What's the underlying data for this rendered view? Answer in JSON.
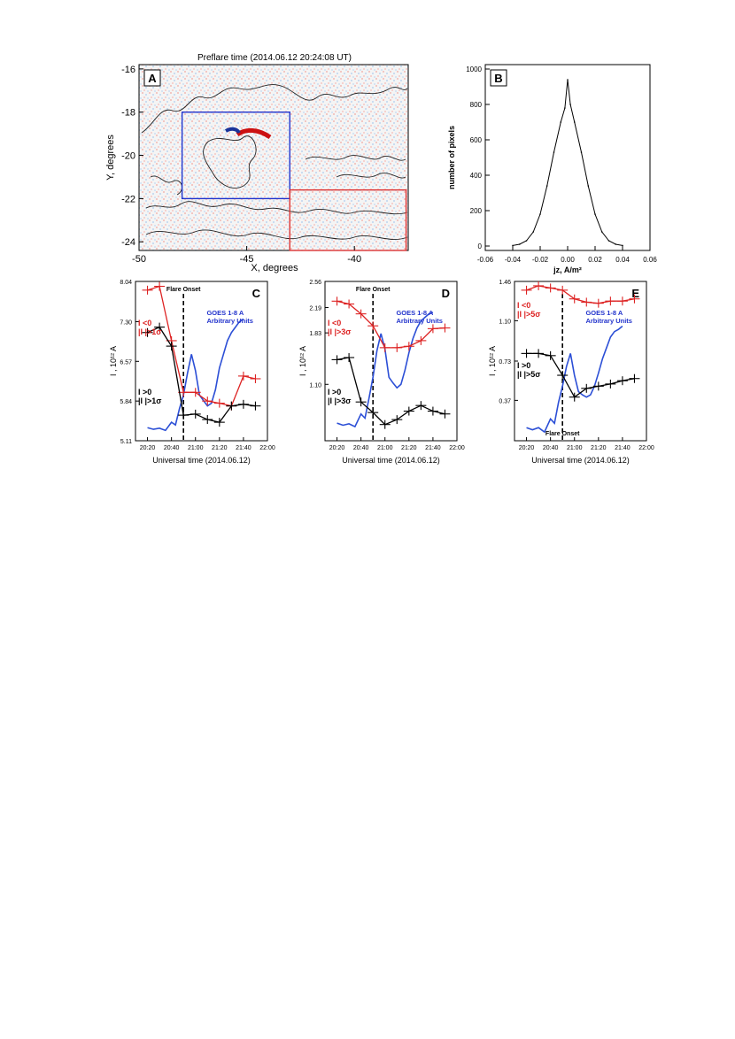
{
  "figure": {
    "panelA": {
      "letter": "A",
      "title": "Preflare time (2014.06.12 20:24:08 UT)",
      "xlabel": "X, degrees",
      "ylabel": "Y, degrees",
      "xlim": [
        -50,
        -37.5
      ],
      "ylim": [
        -24.4,
        -15.8
      ],
      "xticks": [
        -50,
        -45,
        -40
      ],
      "yticks": [
        -24,
        -22,
        -20,
        -18,
        -16
      ],
      "boxes": [
        {
          "color": "#2233cc",
          "x": [
            -48,
            -43
          ],
          "y": [
            -22,
            -18
          ]
        },
        {
          "color": "#dd3333",
          "x": [
            -43,
            -37.6
          ],
          "y": [
            -24.4,
            -21.6
          ]
        }
      ]
    }
  },
  "chart_data": [
    {
      "type": "bar",
      "panel": "B",
      "title": "",
      "xlabel": "jz, A/m²",
      "ylabel": "number of pixels",
      "xlim": [
        -0.06,
        0.06
      ],
      "ylim": [
        0,
        1000
      ],
      "xticks": [
        "-0.06",
        "-0.04",
        "-0.02",
        "0.00",
        "0.02",
        "0.04",
        "0.06"
      ],
      "yticks": [
        "0",
        "200",
        "400",
        "600",
        "800",
        "1000"
      ],
      "x": [
        -0.04,
        -0.035,
        -0.03,
        -0.025,
        -0.02,
        -0.015,
        -0.01,
        -0.005,
        -0.002,
        0,
        0.002,
        0.005,
        0.01,
        0.015,
        0.02,
        0.025,
        0.03,
        0.035,
        0.04
      ],
      "values": [
        3,
        10,
        30,
        80,
        180,
        340,
        530,
        700,
        780,
        940,
        800,
        700,
        530,
        340,
        180,
        80,
        30,
        10,
        3
      ]
    },
    {
      "type": "line",
      "panel": "C",
      "xlabel": "Universal time (2014.06.12)",
      "ylabel": "I , 10¹² A",
      "ylim": [
        5.11,
        8.04
      ],
      "yticks": [
        "5.11",
        "5.84",
        "6.57",
        "7.30",
        "8.04"
      ],
      "xticks": [
        "20:20",
        "20:40",
        "21:00",
        "21:20",
        "21:40",
        "22:00"
      ],
      "x_minutes": [
        24,
        36,
        48,
        60,
        72,
        84,
        96,
        108,
        120,
        132
      ],
      "onset_minute": 60,
      "onset_label": "Flare Onset",
      "goes_label": [
        "GOES 1-8 A",
        "Arbitrary Units"
      ],
      "series": [
        {
          "color": "#dd2222",
          "label": [
            "I <0",
            "|I |>1σ"
          ],
          "values": [
            7.88,
            7.95,
            6.95,
            6.0,
            6.0,
            5.84,
            5.8,
            5.75,
            6.3,
            6.25
          ]
        },
        {
          "color": "#000000",
          "label": [
            "I >0",
            "|I |>1σ"
          ],
          "values": [
            7.1,
            7.2,
            6.85,
            5.58,
            5.6,
            5.5,
            5.45,
            5.75,
            5.78,
            5.75
          ]
        }
      ],
      "goes": {
        "x": [
          24,
          30,
          36,
          42,
          48,
          52,
          56,
          60,
          64,
          68,
          72,
          76,
          80,
          84,
          88,
          92,
          96,
          100,
          104,
          108,
          112,
          116,
          120
        ],
        "values": [
          5.35,
          5.32,
          5.34,
          5.3,
          5.45,
          5.4,
          5.7,
          5.95,
          6.35,
          6.7,
          6.4,
          5.95,
          5.85,
          5.75,
          5.8,
          6.05,
          6.45,
          6.7,
          6.95,
          7.1,
          7.2,
          7.3,
          7.35
        ]
      }
    },
    {
      "type": "line",
      "panel": "D",
      "xlabel": "Universal time (2014.06.12)",
      "ylabel": "I , 10¹² A",
      "ylim": [
        0.3,
        2.56
      ],
      "yticks": [
        "1.10",
        "1.83",
        "2.19",
        "2.56"
      ],
      "xticks": [
        "20:20",
        "20:40",
        "21:00",
        "21:20",
        "21:40",
        "22:00"
      ],
      "x_minutes": [
        24,
        36,
        48,
        60,
        72,
        84,
        96,
        108,
        120,
        132
      ],
      "onset_minute": 60,
      "onset_label": "Flare Onset",
      "goes_label": [
        "GOES 1-8 A",
        "Arbitrary Units"
      ],
      "series": [
        {
          "color": "#dd2222",
          "label": [
            "I <0",
            "|I |>3σ"
          ],
          "values": [
            2.28,
            2.24,
            2.1,
            1.93,
            1.62,
            1.62,
            1.64,
            1.72,
            1.89,
            1.9
          ]
        },
        {
          "color": "#000000",
          "label": [
            "I >0",
            "|I |>3σ"
          ],
          "values": [
            1.45,
            1.48,
            0.85,
            0.7,
            0.53,
            0.6,
            0.72,
            0.8,
            0.72,
            0.68
          ]
        }
      ],
      "goes": {
        "x": [
          24,
          30,
          36,
          42,
          48,
          52,
          56,
          60,
          64,
          68,
          72,
          76,
          80,
          84,
          88,
          92,
          96,
          100,
          104,
          108,
          112,
          116,
          120
        ],
        "values": [
          0.55,
          0.52,
          0.54,
          0.5,
          0.68,
          0.62,
          0.9,
          1.2,
          1.58,
          1.82,
          1.6,
          1.2,
          1.12,
          1.05,
          1.1,
          1.3,
          1.55,
          1.75,
          1.9,
          2.0,
          2.05,
          2.1,
          2.12
        ]
      }
    },
    {
      "type": "line",
      "panel": "E",
      "xlabel": "Universal time (2014.06.12)",
      "ylabel": "I , 10¹² A",
      "ylim": [
        0.0,
        1.46
      ],
      "yticks": [
        "0.37",
        "0.73",
        "1.10",
        "1.46"
      ],
      "xticks": [
        "20:20",
        "20:40",
        "21:00",
        "21:20",
        "21:40",
        "22:00"
      ],
      "x_minutes": [
        24,
        36,
        48,
        60,
        72,
        84,
        96,
        108,
        120,
        132
      ],
      "onset_minute": 60,
      "onset_label": "Flare Onset",
      "goes_label": [
        "GOES 1-8 A",
        "Arbitrary Units"
      ],
      "series": [
        {
          "color": "#dd2222",
          "label": [
            "I <0",
            "|I |>5σ"
          ],
          "values": [
            1.38,
            1.42,
            1.4,
            1.38,
            1.3,
            1.27,
            1.26,
            1.28,
            1.28,
            1.3
          ]
        },
        {
          "color": "#000000",
          "label": [
            "I >0",
            "|I |>5σ"
          ],
          "values": [
            0.8,
            0.8,
            0.78,
            0.6,
            0.4,
            0.48,
            0.5,
            0.52,
            0.55,
            0.57
          ]
        }
      ],
      "goes": {
        "x": [
          24,
          30,
          36,
          42,
          48,
          52,
          56,
          60,
          64,
          68,
          72,
          76,
          80,
          84,
          88,
          92,
          96,
          100,
          104,
          108,
          112,
          116,
          120
        ],
        "values": [
          0.12,
          0.1,
          0.12,
          0.08,
          0.2,
          0.16,
          0.35,
          0.5,
          0.68,
          0.8,
          0.6,
          0.45,
          0.42,
          0.4,
          0.42,
          0.5,
          0.62,
          0.75,
          0.85,
          0.95,
          1.0,
          1.02,
          1.05
        ]
      }
    }
  ]
}
